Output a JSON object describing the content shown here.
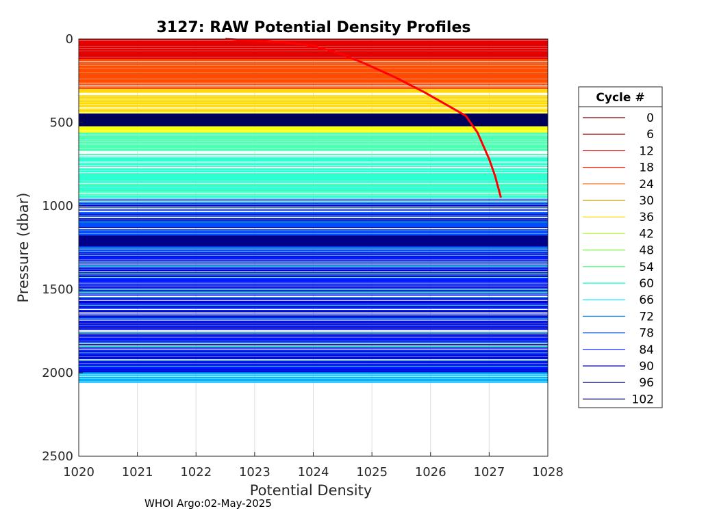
{
  "chart_data": {
    "type": "line",
    "title": "3127: RAW Potential Density Profiles",
    "xlabel": "Potential Density",
    "ylabel": "Pressure (dbar)",
    "xlim": [
      1020,
      1028
    ],
    "ylim": [
      0,
      2500
    ],
    "y_reversed": true,
    "grid": true,
    "x_ticks": [
      "1020",
      "1021",
      "1022",
      "1023",
      "1024",
      "1025",
      "1026",
      "1027",
      "1028"
    ],
    "y_ticks": [
      "0",
      "500",
      "1000",
      "1500",
      "2000",
      "2500"
    ],
    "legend": {
      "title": "Cycle #",
      "placement": "right",
      "entries": [
        {
          "label": "0",
          "color": "#800000"
        },
        {
          "label": "6",
          "color": "#a80000"
        },
        {
          "label": "12",
          "color": "#d40000"
        },
        {
          "label": "18",
          "color": "#ff1a00"
        },
        {
          "label": "24",
          "color": "#ff6600"
        },
        {
          "label": "30",
          "color": "#c8a000"
        },
        {
          "label": "36",
          "color": "#ffd700"
        },
        {
          "label": "42",
          "color": "#c0ff3f"
        },
        {
          "label": "48",
          "color": "#70ff40"
        },
        {
          "label": "54",
          "color": "#30ff70"
        },
        {
          "label": "60",
          "color": "#00ffc0"
        },
        {
          "label": "66",
          "color": "#00e0ff"
        },
        {
          "label": "72",
          "color": "#0090ff"
        },
        {
          "label": "78",
          "color": "#0050ff"
        },
        {
          "label": "84",
          "color": "#0010ff"
        },
        {
          "label": "90",
          "color": "#0000b0"
        },
        {
          "label": "96",
          "color": "#000070"
        },
        {
          "label": "102",
          "color": "#00005a"
        }
      ]
    },
    "note": "Profiles appear as near-horizontal lines spanning the density range at most pressures, with a curved profile from about 1022.5 at 0 dbar to about 1027.2 at 950 dbar.",
    "series": [
      {
        "label": "",
        "color": "#ff0000",
        "x": [
          1022.5,
          1023.5,
          1024.0,
          1024.4,
          1024.9,
          1025.4,
          1025.9,
          1026.3,
          1026.6,
          1026.8,
          1027.0,
          1027.1,
          1027.2
        ],
        "y": [
          0,
          20,
          40,
          80,
          150,
          230,
          320,
          400,
          460,
          560,
          720,
          820,
          950
        ]
      }
    ]
  },
  "footer": "WHOI Argo:02-May-2025"
}
